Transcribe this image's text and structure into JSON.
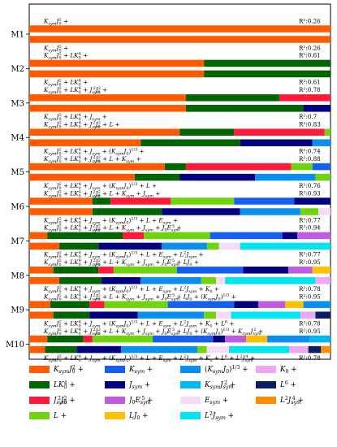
{
  "chart_data": {
    "type": "bar",
    "orientation": "horizontal-stacked",
    "xlim": [
      0,
      1
    ],
    "groups": [
      {
        "label": "M1",
        "rows": [
          {
            "formula": "K_{sym}J_0^2 +",
            "r2": "R²:0.26",
            "segments": [
              {
                "term": "KsymJ0sq",
                "value": 1.0
              }
            ]
          },
          {
            "formula": "K_{sym}J_0^2 +",
            "r2": "R²:0.26",
            "segments": [
              {
                "term": "KsymJ0sq",
                "value": 1.0
              }
            ]
          }
        ]
      },
      {
        "label": "M2",
        "rows": [
          {
            "formula": "K_{sym}J_0^2 + LK_0^4 +",
            "r2": "R²:0.61",
            "segments": [
              {
                "term": "KsymJ0sq",
                "value": 0.58
              },
              {
                "term": "LK04",
                "value": 0.42
              }
            ]
          },
          {
            "formula": "K_{sym}J_0^2 + LK_0^4 +",
            "r2": "R²:0.61",
            "segments": [
              {
                "term": "KsymJ0sq",
                "value": 0.58
              },
              {
                "term": "LK04",
                "value": 0.42
              }
            ]
          }
        ]
      },
      {
        "label": "M3",
        "rows": [
          {
            "formula": "K_{sym}J_0^2 + LK_0^4 + J_{sym}^2J_0^2 +",
            "r2": "R²:0.78",
            "segments": [
              {
                "term": "KsymJ0sq",
                "value": 0.52
              },
              {
                "term": "LK04",
                "value": 0.31
              },
              {
                "term": "Jsym2J02",
                "value": 0.17
              }
            ]
          },
          {
            "formula": "K_{sym}J_0^2 + LK_0^4 + J_{sym} +",
            "r2": "R²:0.7",
            "segments": [
              {
                "term": "KsymJ0sq",
                "value": 0.52
              },
              {
                "term": "LK04",
                "value": 0.39
              },
              {
                "term": "Jsym",
                "value": 0.09
              }
            ]
          }
        ]
      },
      {
        "label": "M4",
        "rows": [
          {
            "formula": "K_{sym}J_0^2 + LK_0^4 + J_{sym}^2J_0^2 + L +",
            "r2": "R²:0.83",
            "segments": [
              {
                "term": "KsymJ0sq",
                "value": 0.5
              },
              {
                "term": "LK04",
                "value": 0.18
              },
              {
                "term": "Jsym2J02",
                "value": 0.3
              },
              {
                "term": "L",
                "value": 0.02
              }
            ]
          },
          {
            "formula": "K_{sym}J_0^2 + LK_0^4 + J_{sym} + (K_{sym}J_0)^{1/3} +",
            "r2": "R²:0.74",
            "segments": [
              {
                "term": "KsymJ0sq",
                "value": 0.37
              },
              {
                "term": "LK04",
                "value": 0.33
              },
              {
                "term": "Jsym",
                "value": 0.24
              },
              {
                "term": "KsymJ0cbrt",
                "value": 0.06
              }
            ]
          }
        ]
      },
      {
        "label": "M5",
        "rows": [
          {
            "formula": "K_{sym}J_0^2 + LK_0^4 + J_{sym}^2J_0^2 + L + K_{sym} +",
            "r2": "R²:0.88",
            "segments": [
              {
                "term": "KsymJ0sq",
                "value": 0.45
              },
              {
                "term": "LK04",
                "value": 0.07
              },
              {
                "term": "Jsym2J02",
                "value": 0.35
              },
              {
                "term": "L",
                "value": 0.07
              },
              {
                "term": "Ksym",
                "value": 0.06
              }
            ]
          },
          {
            "formula": "K_{sym}J_0^2 + LK_0^4 + J_{sym} + (K_{sym}J_0)^{1/3} + L +",
            "r2": "R²:0.76",
            "segments": [
              {
                "term": "KsymJ0sq",
                "value": 0.35
              },
              {
                "term": "LK04",
                "value": 0.15
              },
              {
                "term": "Jsym",
                "value": 0.25
              },
              {
                "term": "KsymJ0cbrt",
                "value": 0.2
              },
              {
                "term": "L",
                "value": 0.05
              }
            ]
          }
        ]
      },
      {
        "label": "M6",
        "rows": [
          {
            "formula": "K_{sym}J_0^2 + LK_0^4 + J_{sym}^2J_0^2 + L + K_{sym} + J_{sym} +",
            "r2": "R²:0.93",
            "segments": [
              {
                "term": "KsymJ0sq",
                "value": 0.21
              },
              {
                "term": "LK04",
                "value": 0.06
              },
              {
                "term": "Jsym2J02",
                "value": 0.2
              },
              {
                "term": "L",
                "value": 0.21
              },
              {
                "term": "Ksym",
                "value": 0.2
              },
              {
                "term": "Jsym",
                "value": 0.12
              }
            ]
          },
          {
            "formula": "K_{sym}J_0^2 + LK_0^4 + J_{sym} + (K_{sym}J_0)^{1/3} + L + E_{sym} +",
            "r2": "R²:0.77",
            "segments": [
              {
                "term": "KsymJ0sq",
                "value": 0.21
              },
              {
                "term": "LK04",
                "value": 0.23
              },
              {
                "term": "Jsym",
                "value": 0.26
              },
              {
                "term": "KsymJ0cbrt",
                "value": 0.2
              },
              {
                "term": "L",
                "value": 0.06
              },
              {
                "term": "Esym",
                "value": 0.04
              }
            ]
          }
        ]
      },
      {
        "label": "M7",
        "rows": [
          {
            "formula": "K_{sym}J_0^2 + LK_0^4 + J_{sym}^2J_0^2 + L + K_{sym} + J_{sym} + J_0E_{sym}^5 +",
            "r2": "R²:0.94",
            "segments": [
              {
                "term": "KsymJ0sq",
                "value": 0.06
              },
              {
                "term": "LK04",
                "value": 0.25
              },
              {
                "term": "Jsym2J02",
                "value": 0.07
              },
              {
                "term": "L",
                "value": 0.22
              },
              {
                "term": "Ksym",
                "value": 0.24
              },
              {
                "term": "Jsym",
                "value": 0.05
              },
              {
                "term": "J0E5sym",
                "value": 0.11
              }
            ]
          },
          {
            "formula": "K_{sym}J_0^2 + LK_0^4 + J_{sym} + (K_{sym}J_0)^{1/3} + L + E_{sym} + L^2J_{sym} +",
            "r2": "R²:0.77",
            "segments": [
              {
                "term": "KsymJ0sq",
                "value": 0.1
              },
              {
                "term": "LK04",
                "value": 0.13
              },
              {
                "term": "Jsym",
                "value": 0.21
              },
              {
                "term": "KsymJ0cbrt",
                "value": 0.15
              },
              {
                "term": "L",
                "value": 0.04
              },
              {
                "term": "Esym",
                "value": 0.07
              },
              {
                "term": "L2Jsym",
                "value": 0.3
              }
            ]
          }
        ]
      },
      {
        "label": "M8",
        "rows": [
          {
            "formula": "K_{sym}J_0^2 + LK_0^4 + J_{sym}^2J_0^2 + L + K_{sym} + J_{sym} + J_0E_{sym}^5 + LJ_0 +",
            "r2": "R²:0.95",
            "segments": [
              {
                "term": "KsymJ0sq",
                "value": 0.08
              },
              {
                "term": "LK04",
                "value": 0.15
              },
              {
                "term": "Jsym2J02",
                "value": 0.05
              },
              {
                "term": "L",
                "value": 0.21
              },
              {
                "term": "Ksym",
                "value": 0.22
              },
              {
                "term": "Jsym",
                "value": 0.15
              },
              {
                "term": "J0E5sym",
                "value": 0.08
              },
              {
                "term": "LJ0",
                "value": 0.06
              }
            ]
          },
          {
            "formula": "K_{sym}J_0^2 + LK_0^4 + J_{sym} + (K_{sym}J_0)^{1/3} + L + E_{sym} + L^2J_{sym} + K_0 +",
            "r2": "R²:0.78",
            "segments": [
              {
                "term": "KsymJ0sq",
                "value": 0.1
              },
              {
                "term": "LK04",
                "value": 0.14
              },
              {
                "term": "Jsym",
                "value": 0.13
              },
              {
                "term": "KsymJ0cbrt",
                "value": 0.2
              },
              {
                "term": "L",
                "value": 0.05
              },
              {
                "term": "Esym",
                "value": 0.03
              },
              {
                "term": "L2Jsym",
                "value": 0.3
              },
              {
                "term": "K0",
                "value": 0.05
              }
            ]
          }
        ]
      },
      {
        "label": "M9",
        "rows": [
          {
            "formula": "K_{sym}J_0^2 + LK_0^4 + J_{sym}^2J_0^2 + L + K_{sym} + J_{sym} + J_0E_{sym}^5 + LJ_0 + (K_{sym}J_0)^{1/3} +",
            "r2": "R²:0.95",
            "segments": [
              {
                "term": "KsymJ0sq",
                "value": 0.07
              },
              {
                "term": "LK04",
                "value": 0.13
              },
              {
                "term": "Jsym2J02",
                "value": 0.05
              },
              {
                "term": "L",
                "value": 0.21
              },
              {
                "term": "Ksym",
                "value": 0.22
              },
              {
                "term": "Jsym",
                "value": 0.08
              },
              {
                "term": "J0E5sym",
                "value": 0.09
              },
              {
                "term": "LJ0",
                "value": 0.06
              },
              {
                "term": "KsymJ0cbrt",
                "value": 0.09
              }
            ]
          },
          {
            "formula": "K_{sym}J_0^2 + LK_0^4 + J_{sym} + (K_{sym}J_0)^{1/3} + L + E_{sym} + L^2J_{sym} + K_0 + L^6 +",
            "r2": "R²:0.78",
            "segments": [
              {
                "term": "KsymJ0sq",
                "value": 0.08
              },
              {
                "term": "LK04",
                "value": 0.12
              },
              {
                "term": "Jsym",
                "value": 0.16
              },
              {
                "term": "KsymJ0cbrt",
                "value": 0.22
              },
              {
                "term": "L",
                "value": 0.04
              },
              {
                "term": "Esym",
                "value": 0.05
              },
              {
                "term": "L2Jsym",
                "value": 0.23
              },
              {
                "term": "K0",
                "value": 0.05
              },
              {
                "term": "L6",
                "value": 0.05
              }
            ]
          }
        ]
      },
      {
        "label": "M10",
        "rows": [
          {
            "formula": "K_{sym}J_0^2 + LK_0^4 + J_{sym}^2J_0^2 + L + K_{sym} + J_{sym} + J_0E_{sym}^5 + LJ_0 + (K_{sym}J_0)^{1/3} + K_{sym}J_{sym}^2 +",
            "r2": "R²:0.95",
            "segments": [
              {
                "term": "KsymJ0sq",
                "value": 0.06
              },
              {
                "term": "LK04",
                "value": 0.12
              },
              {
                "term": "Jsym2J02",
                "value": 0.03
              },
              {
                "term": "L",
                "value": 0.2
              },
              {
                "term": "Ksym",
                "value": 0.2
              },
              {
                "term": "Jsym",
                "value": 0.04
              },
              {
                "term": "J0E5sym",
                "value": 0.07
              },
              {
                "term": "LJ0",
                "value": 0.07
              },
              {
                "term": "KsymJ0cbrt",
                "value": 0.14
              },
              {
                "term": "KsymJsym2",
                "value": 0.07
              }
            ]
          },
          {
            "formula": "K_{sym}J_0^2 + LK_0^4 + J_{sym} + (K_{sym}J_0)^{1/3} + L + E_{sym} + L^2J_{sym} + K_0 + L^6 + L^2J_{sym}^4 +",
            "r2": "R²:0.78",
            "segments": [
              {
                "term": "KsymJ0sq",
                "value": 0.05
              },
              {
                "term": "LK04",
                "value": 0.1
              },
              {
                "term": "Jsym",
                "value": 0.14
              },
              {
                "term": "KsymJ0cbrt",
                "value": 0.24
              },
              {
                "term": "L",
                "value": 0.03
              },
              {
                "term": "Esym",
                "value": 0.07
              },
              {
                "term": "L2Jsym",
                "value": 0.19
              },
              {
                "term": "K0",
                "value": 0.06
              },
              {
                "term": "L6",
                "value": 0.04
              },
              {
                "term": "L2Jsym4",
                "value": 0.03
              }
            ]
          }
        ]
      }
    ],
    "legend": {
      "placement": "bottom",
      "columns": 4,
      "entries": [
        {
          "term": "KsymJ0sq",
          "label": "K_{sym}J_0^2 +",
          "color": "#ff5a00"
        },
        {
          "term": "LK04",
          "label": "LK_0^4 +",
          "color": "#006400"
        },
        {
          "term": "Jsym2J02",
          "label": "J_{sym}^2J_0^2 +",
          "color": "#ff1a3c"
        },
        {
          "term": "L",
          "label": "L +",
          "color": "#6fd40c"
        },
        {
          "term": "Ksym",
          "label": "K_{sym} +",
          "color": "#1560f0"
        },
        {
          "term": "Jsym",
          "label": "J_{sym} +",
          "color": "#000080"
        },
        {
          "term": "J0E5sym",
          "label": "J_0E_{sym}^5 +",
          "color": "#c05ae0"
        },
        {
          "term": "LJ0",
          "label": "LJ_0 +",
          "color": "#ffc000"
        },
        {
          "term": "KsymJ0cbrt",
          "label": "(K_{sym}J_0)^{1/3} +",
          "color": "#0a8ff0"
        },
        {
          "term": "KsymJsym2",
          "label": "K_{sym}J_{sym}^2 +",
          "color": "#00b8f0"
        },
        {
          "term": "Esym",
          "label": "E_{sym} +",
          "color": "#f5dcf5"
        },
        {
          "term": "L2Jsym",
          "label": "L^2J_{sym} +",
          "color": "#00e5f0"
        },
        {
          "term": "K0",
          "label": "K_0 +",
          "color": "#f0a6f0"
        },
        {
          "term": "L6",
          "label": "L^6 +",
          "color": "#0a1f60"
        },
        {
          "term": "L2Jsym4",
          "label": "L^2J_{sym}^4 +",
          "color": "#ff8c00"
        }
      ]
    }
  }
}
